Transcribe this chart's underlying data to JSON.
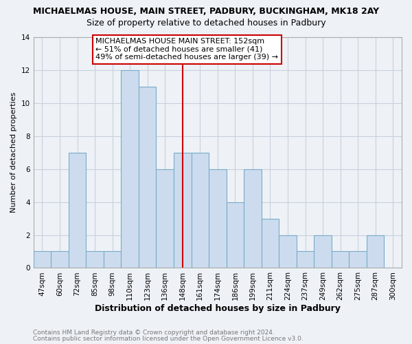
{
  "title": "MICHAELMAS HOUSE, MAIN STREET, PADBURY, BUCKINGHAM, MK18 2AY",
  "subtitle": "Size of property relative to detached houses in Padbury",
  "xlabel": "Distribution of detached houses by size in Padbury",
  "ylabel": "Number of detached properties",
  "bin_labels": [
    "47sqm",
    "60sqm",
    "72sqm",
    "85sqm",
    "98sqm",
    "110sqm",
    "123sqm",
    "136sqm",
    "148sqm",
    "161sqm",
    "174sqm",
    "186sqm",
    "199sqm",
    "211sqm",
    "224sqm",
    "237sqm",
    "249sqm",
    "262sqm",
    "275sqm",
    "287sqm",
    "300sqm"
  ],
  "bar_heights": [
    1,
    1,
    7,
    1,
    1,
    12,
    11,
    6,
    7,
    7,
    6,
    4,
    6,
    3,
    2,
    1,
    2,
    1,
    1,
    2,
    0
  ],
  "bar_color": "#ccdcee",
  "bar_edge_color": "#7aaac8",
  "marker_line_color": "#cc0000",
  "marker_idx": 8,
  "ylim": [
    0,
    14
  ],
  "yticks": [
    0,
    2,
    4,
    6,
    8,
    10,
    12,
    14
  ],
  "annotation_text": "MICHAELMAS HOUSE MAIN STREET: 152sqm\n← 51% of detached houses are smaller (41)\n49% of semi-detached houses are larger (39) →",
  "annotation_box_edge": "#cc0000",
  "annotation_box_face": "#ffffff",
  "footer1": "Contains HM Land Registry data © Crown copyright and database right 2024.",
  "footer2": "Contains public sector information licensed under the Open Government Licence v3.0.",
  "background_color": "#eef2f7",
  "plot_bg_color": "#eef2f7",
  "grid_color": "#c8d0dc",
  "spine_color": "#aaaaaa",
  "title_fontsize": 9,
  "subtitle_fontsize": 9,
  "ylabel_fontsize": 8,
  "xlabel_fontsize": 9,
  "tick_fontsize": 7.5,
  "footer_fontsize": 6.5,
  "annotation_fontsize": 8
}
